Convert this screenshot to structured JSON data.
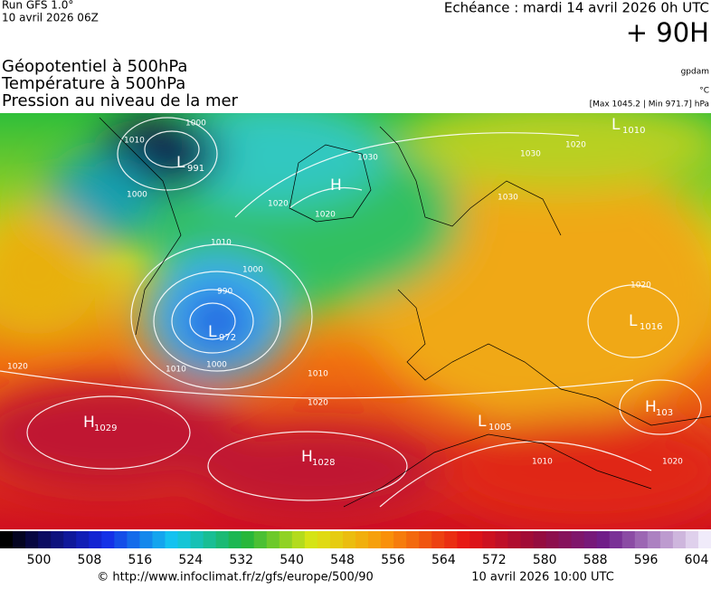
{
  "header": {
    "run": "Run GFS 1.0°",
    "run_date": "10 avril 2026 06Z",
    "echeance": "Echéance : mardi 14 avril 2026 0h UTC",
    "horizon": "+ 90H",
    "titles": [
      "Géopotentiel à 500hPa",
      "Température à 500hPa",
      "Pression au niveau de la mer"
    ],
    "units": [
      "gpdam",
      "°C",
      "[Max 1045.2 | Min 971.7] hPa"
    ]
  },
  "map": {
    "centers": [
      {
        "letter": "L",
        "value": "991"
      },
      {
        "letter": "H",
        "value": ""
      },
      {
        "letter": "L",
        "value": "972"
      },
      {
        "letter": "H",
        "value": "1029"
      },
      {
        "letter": "H",
        "value": "1028"
      },
      {
        "letter": "L",
        "value": "1005"
      },
      {
        "letter": "H",
        "value": "103"
      },
      {
        "letter": "L",
        "value": "1016"
      },
      {
        "letter": "L",
        "value": "1010"
      }
    ],
    "isobar_labels": [
      "1000",
      "1010",
      "1000",
      "1010",
      "1000",
      "990",
      "1000",
      "1010",
      "1010",
      "1020",
      "1020",
      "1020",
      "1020",
      "1030",
      "1030",
      "1020",
      "1020",
      "1010",
      "1020",
      "1030"
    ]
  },
  "colorbar": {
    "ticks": [
      500,
      508,
      516,
      524,
      532,
      540,
      548,
      556,
      564,
      572,
      580,
      588,
      596,
      604
    ]
  },
  "footer": {
    "url": "© http://www.infoclimat.fr/z/gfs/europe/500/90",
    "timestamp": "10 avril 2026 10:00 UTC"
  }
}
